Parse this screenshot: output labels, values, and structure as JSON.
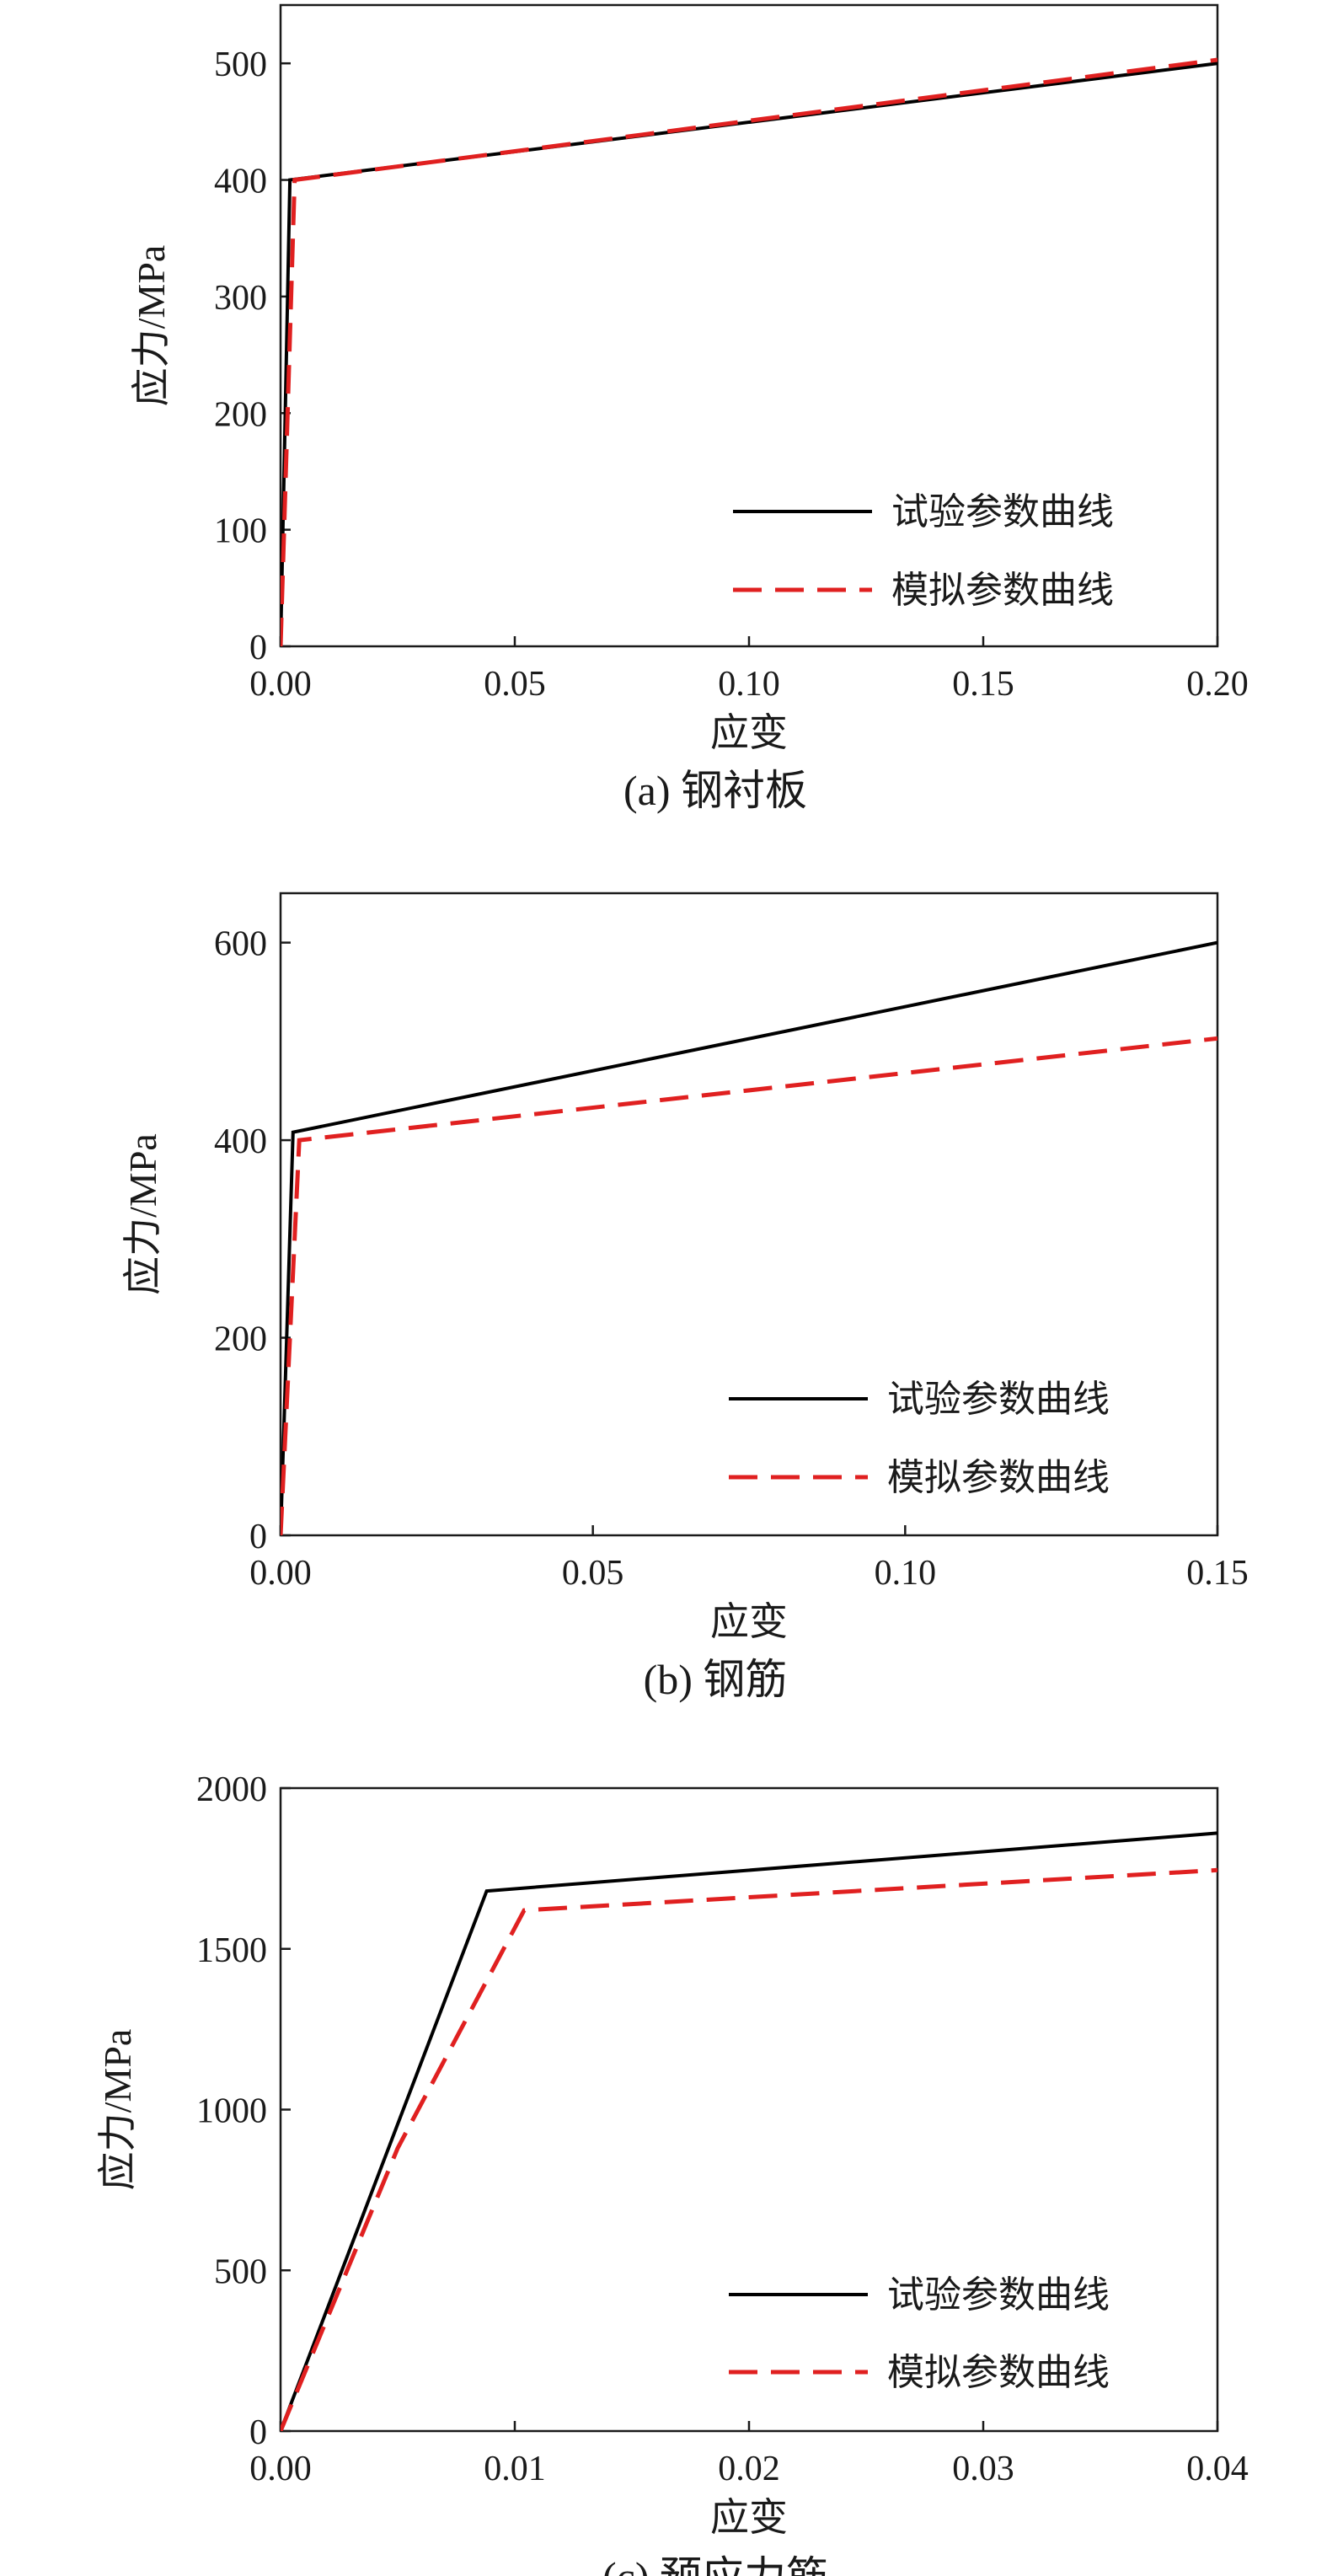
{
  "colors": {
    "experiment": "#000000",
    "simulation": "#e02020",
    "axis": "#1a1a1a"
  },
  "chart_data": [
    {
      "type": "line",
      "caption": "(a) 钢衬板",
      "xlabel": "应变",
      "ylabel": "应力/MPa",
      "xlim": [
        0,
        0.2
      ],
      "ylim": [
        0,
        550
      ],
      "xticks": [
        0,
        0.05,
        0.1,
        0.15,
        0.2
      ],
      "xtick_labels": [
        "0.00",
        "0.05",
        "0.10",
        "0.15",
        "0.20"
      ],
      "yticks": [
        0,
        100,
        200,
        300,
        400,
        500
      ],
      "ytick_labels": [
        "0",
        "100",
        "200",
        "300",
        "400",
        "500"
      ],
      "legend_position": "bottom-right",
      "series": [
        {
          "name": "试验参数曲线",
          "style": "solid",
          "color": "#000000",
          "x": [
            0,
            0.002,
            0.2
          ],
          "y": [
            0,
            400,
            500
          ]
        },
        {
          "name": "模拟参数曲线",
          "style": "dashed",
          "color": "#e02020",
          "x": [
            0,
            0.003,
            0.2
          ],
          "y": [
            0,
            400,
            503
          ]
        }
      ]
    },
    {
      "type": "line",
      "caption": "(b) 钢筋",
      "xlabel": "应变",
      "ylabel": "应力/MPa",
      "xlim": [
        0,
        0.15
      ],
      "ylim": [
        0,
        650
      ],
      "xticks": [
        0,
        0.05,
        0.1,
        0.15
      ],
      "xtick_labels": [
        "0.00",
        "0.05",
        "0.10",
        "0.15"
      ],
      "yticks": [
        0,
        200,
        400,
        600
      ],
      "ytick_labels": [
        "0",
        "200",
        "400",
        "600"
      ],
      "legend_position": "bottom-right",
      "series": [
        {
          "name": "试验参数曲线",
          "style": "solid",
          "color": "#000000",
          "x": [
            0,
            0.002,
            0.15
          ],
          "y": [
            0,
            408,
            600
          ]
        },
        {
          "name": "模拟参数曲线",
          "style": "dashed",
          "color": "#e02020",
          "x": [
            0,
            0.003,
            0.15
          ],
          "y": [
            0,
            400,
            503
          ]
        }
      ]
    },
    {
      "type": "line",
      "caption": "(c) 预应力筋",
      "xlabel": "应变",
      "ylabel": "应力/MPa",
      "xlim": [
        0,
        0.04
      ],
      "ylim": [
        0,
        2000
      ],
      "xticks": [
        0,
        0.01,
        0.02,
        0.03,
        0.04
      ],
      "xtick_labels": [
        "0.00",
        "0.01",
        "0.02",
        "0.03",
        "0.04"
      ],
      "yticks": [
        0,
        500,
        1000,
        1500,
        2000
      ],
      "ytick_labels": [
        "0",
        "500",
        "1000",
        "1500",
        "2000"
      ],
      "legend_position": "bottom-right",
      "series": [
        {
          "name": "试验参数曲线",
          "style": "solid",
          "color": "#000000",
          "x": [
            0,
            0.0088,
            0.04
          ],
          "y": [
            0,
            1680,
            1860
          ]
        },
        {
          "name": "模拟参数曲线",
          "style": "dashed",
          "color": "#e02020",
          "x": [
            0,
            0.005,
            0.0104,
            0.04
          ],
          "y": [
            0,
            880,
            1620,
            1745
          ]
        }
      ]
    }
  ]
}
